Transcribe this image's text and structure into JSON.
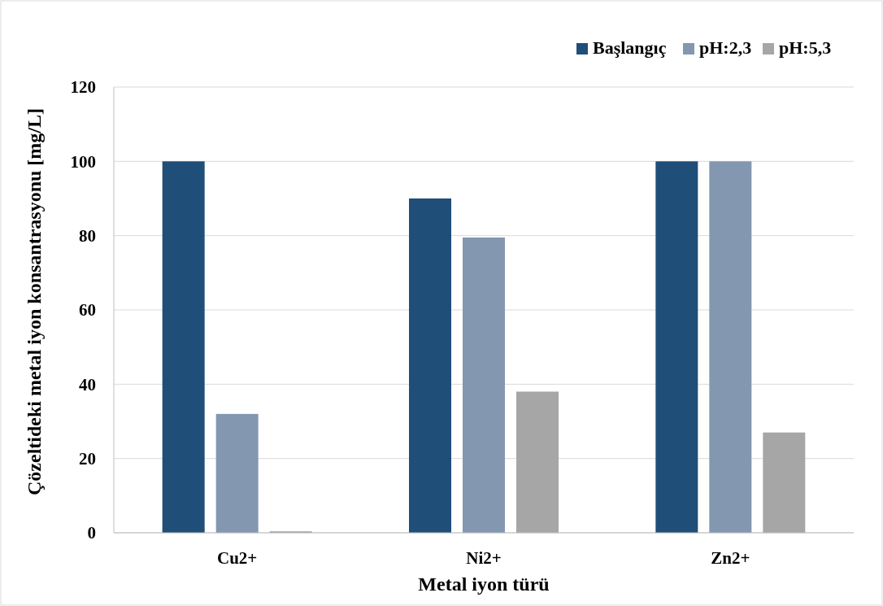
{
  "chart_data": {
    "type": "bar",
    "xlabel": "Metal iyon türü",
    "ylabel": "Çözeltideki metal iyon konsantrasyonu [mg/L]",
    "categories": [
      "Cu2+",
      "Ni2+",
      "Zn2+"
    ],
    "series": [
      {
        "name": "Başlangıç",
        "color": "#1f4e79",
        "values": [
          100,
          90,
          100
        ]
      },
      {
        "name": "pH:2,3",
        "color": "#8497b0",
        "values": [
          32,
          79.5,
          100
        ]
      },
      {
        "name": "pH:5,3",
        "color": "#a6a6a6",
        "values": [
          0.4,
          38,
          27
        ]
      }
    ],
    "ylim": [
      0,
      120
    ],
    "yticks": [
      0,
      20,
      40,
      60,
      80,
      100,
      120
    ],
    "grid": "y",
    "legend": "top right"
  }
}
